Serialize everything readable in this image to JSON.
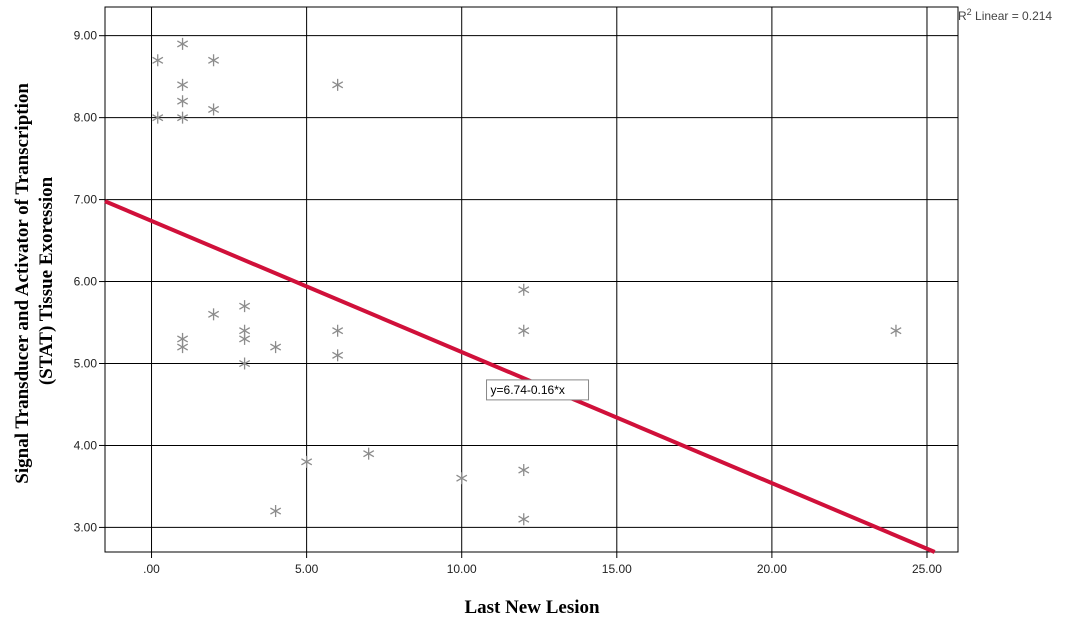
{
  "chart_data": {
    "type": "scatter",
    "xlabel": "Last New Lesion",
    "ylabel_line1": "Signal Transducer and Activator of Transcription",
    "ylabel_line2": "(STAT) Tissue Exoression",
    "xlim": [
      -1.5,
      26
    ],
    "ylim": [
      2.7,
      9.35
    ],
    "xticks": [
      0,
      5,
      10,
      15,
      20,
      25
    ],
    "xtick_labels": [
      ".00",
      "5.00",
      "10.00",
      "15.00",
      "20.00",
      "25.00"
    ],
    "yticks": [
      3,
      4,
      5,
      6,
      7,
      8,
      9
    ],
    "ytick_labels": [
      "3.00",
      "4.00",
      "5.00",
      "6.00",
      "7.00",
      "8.00",
      "9.00"
    ],
    "grid": true,
    "marker": "asterisk",
    "marker_color": "#8c8c8c",
    "points": [
      {
        "x": 0.2,
        "y": 8.7
      },
      {
        "x": 1,
        "y": 8.9
      },
      {
        "x": 2,
        "y": 8.7
      },
      {
        "x": 1,
        "y": 8.4
      },
      {
        "x": 1,
        "y": 8.2
      },
      {
        "x": 2,
        "y": 8.1
      },
      {
        "x": 0.2,
        "y": 8.0
      },
      {
        "x": 1,
        "y": 8.0
      },
      {
        "x": 6,
        "y": 8.4
      },
      {
        "x": 2,
        "y": 5.6
      },
      {
        "x": 3,
        "y": 5.7
      },
      {
        "x": 3,
        "y": 5.4
      },
      {
        "x": 3,
        "y": 5.3
      },
      {
        "x": 1,
        "y": 5.3
      },
      {
        "x": 1,
        "y": 5.2
      },
      {
        "x": 4,
        "y": 5.2
      },
      {
        "x": 3,
        "y": 5.0
      },
      {
        "x": 6,
        "y": 5.4
      },
      {
        "x": 6,
        "y": 5.1
      },
      {
        "x": 12,
        "y": 5.9
      },
      {
        "x": 12,
        "y": 5.4
      },
      {
        "x": 24,
        "y": 5.4
      },
      {
        "x": 5,
        "y": 3.8
      },
      {
        "x": 7,
        "y": 3.9
      },
      {
        "x": 4,
        "y": 3.2
      },
      {
        "x": 10,
        "y": 3.6
      },
      {
        "x": 12,
        "y": 3.7
      },
      {
        "x": 12,
        "y": 3.1
      }
    ],
    "fit_line": {
      "intercept": 6.74,
      "slope": -0.16,
      "label": "y=6.74-0.16*x",
      "label_at": {
        "x": 10.8,
        "y": 4.8
      },
      "color": "#d0103a"
    },
    "r2_label_prefix": "R",
    "r2_label_sup": "2",
    "r2_label_rest": " Linear = 0.214"
  }
}
